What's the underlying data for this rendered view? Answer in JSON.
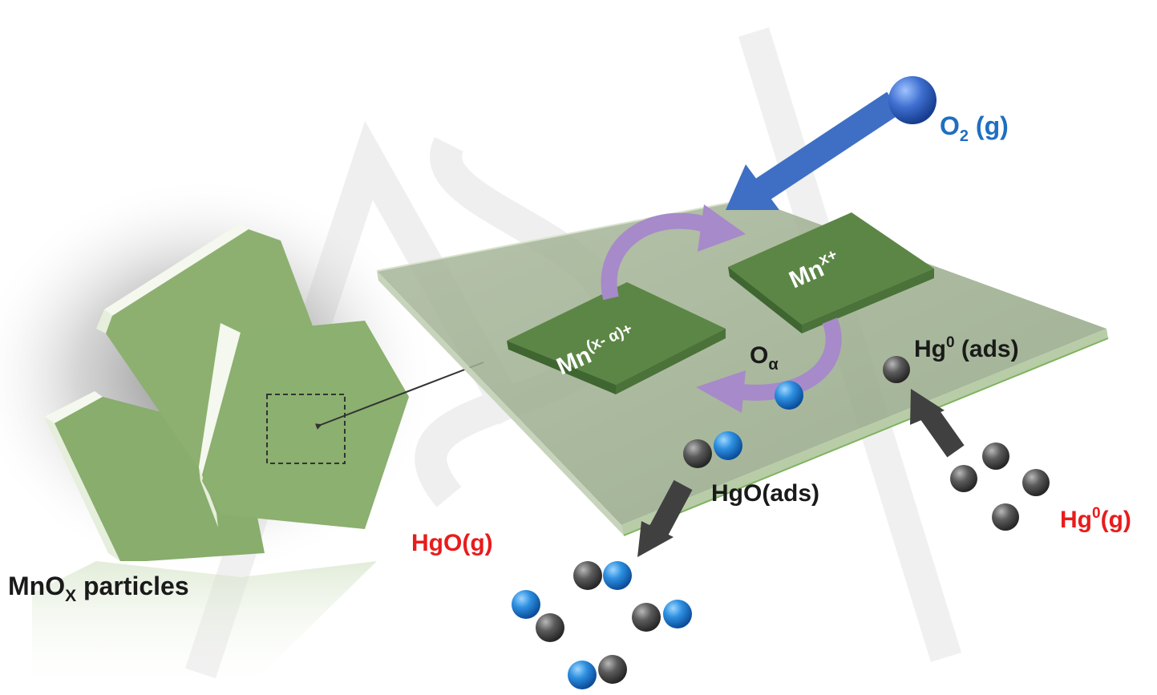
{
  "labels": {
    "o2_gas_main": "O",
    "o2_gas_sub": "2",
    "o2_gas_tail": " (g)",
    "mn_reduced_main": "Mn",
    "mn_reduced_sup": "(x- α)+",
    "mn_oxidized_main": "Mn",
    "mn_oxidized_sup": "x+",
    "o_alpha_main": "O",
    "o_alpha_sub": "α",
    "hg_ads_main": "Hg",
    "hg_ads_sup": "0",
    "hg_ads_tail": " (ads)",
    "hgo_ads": "HgO(ads)",
    "hgo_gas": "HgO(g)",
    "hg_gas_main": "Hg",
    "hg_gas_sup": "0",
    "hg_gas_tail": "(g)",
    "mnox_main": "MnO",
    "mnox_sub": "X",
    "mnox_tail": " particles"
  },
  "colors": {
    "oxygen_label": "#1f6fc0",
    "mercury_gas_label": "#e81c1c",
    "dark_label": "#1a1a1a",
    "particle_green": "#88ad6c",
    "plate_green": "#9fb38f",
    "site_green": "#4f7a3a",
    "cycle_arrow": "#a78ac9",
    "o2_arrow": "#3e6fc4",
    "hg_arrow": "#404040",
    "oxygen_atom": "#2d8fe0",
    "mercury_atom": "#5c5c5c"
  }
}
